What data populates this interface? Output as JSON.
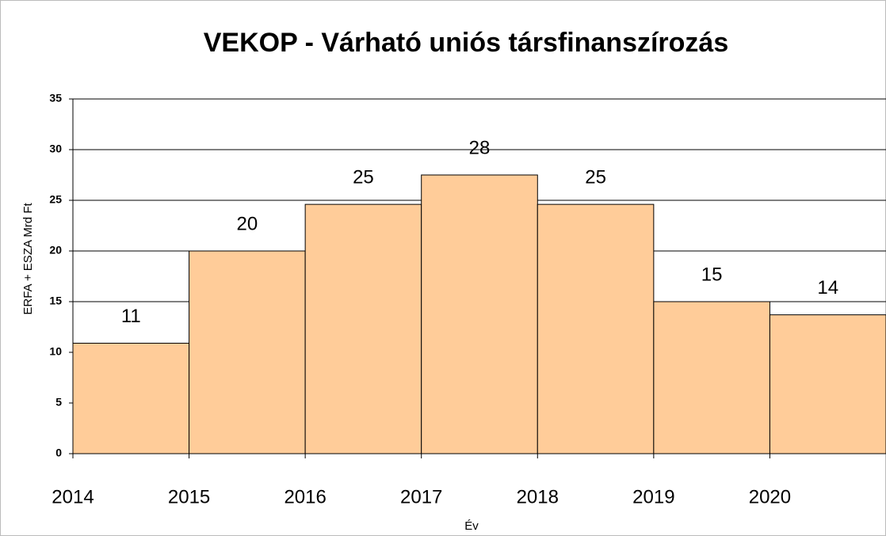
{
  "chart_data": {
    "type": "step",
    "title": "VEKOP - Várható uniós társfinanszírozás",
    "x_label": "Év",
    "y_label": "ERFA + ESZA Mrd Ft",
    "x": [
      2014,
      2015,
      2016,
      2017,
      2018,
      2019,
      2020
    ],
    "values": [
      10.9,
      20,
      24.6,
      27.5,
      24.6,
      15,
      13.7
    ],
    "value_labels": [
      "11",
      "20",
      "25",
      "28",
      "25",
      "15",
      "14"
    ],
    "color": "#ffcc99",
    "xlim": [
      2014,
      2021
    ],
    "xticks": [
      2014,
      2015,
      2016,
      2017,
      2018,
      2019,
      2020
    ],
    "ylim": [
      0,
      35
    ],
    "yticks": [
      0,
      5,
      10,
      15,
      20,
      25,
      30,
      35
    ],
    "grid": true
  }
}
